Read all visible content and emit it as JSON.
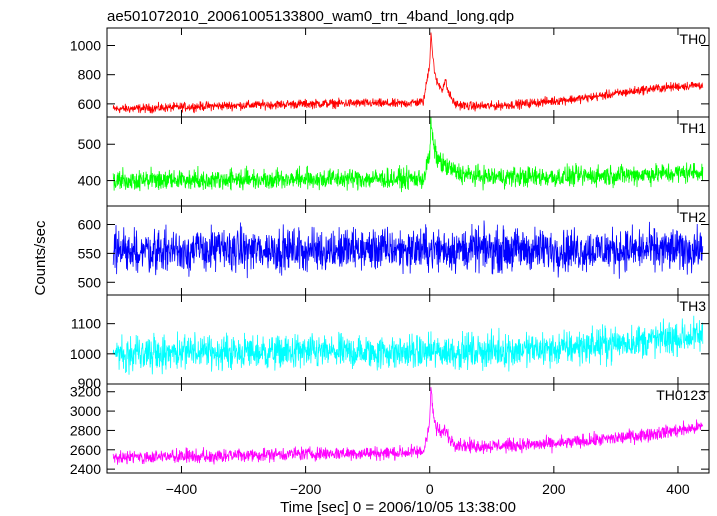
{
  "chart_data": {
    "type": "line",
    "title": "ae501072010_20061005133800_wam0_trn_4band_long.qdp",
    "xlabel": "Time [sec] 0 = 2006/10/05 13:38:00",
    "ylabel": "Counts/sec",
    "xlim": [
      -520,
      450
    ],
    "xticks": [
      -400,
      -200,
      0,
      200,
      400
    ],
    "grid": false,
    "panels": [
      {
        "name": "TH0",
        "color": "#ff0000",
        "ylim": [
          510,
          1120
        ],
        "yticks": [
          600,
          800,
          1000
        ],
        "x": [
          -510,
          -450,
          -400,
          -350,
          -300,
          -250,
          -200,
          -150,
          -100,
          -50,
          -10,
          0,
          2,
          5,
          10,
          20,
          25,
          30,
          40,
          60,
          100,
          150,
          200,
          250,
          300,
          350,
          400,
          440
        ],
        "y": [
          565,
          570,
          578,
          585,
          590,
          595,
          600,
          603,
          605,
          600,
          615,
          880,
          1100,
          920,
          760,
          700,
          760,
          680,
          600,
          585,
          585,
          600,
          620,
          640,
          670,
          700,
          720,
          730
        ],
        "noise": 22
      },
      {
        "name": "TH1",
        "color": "#00ff00",
        "ylim": [
          330,
          575
        ],
        "yticks": [
          400,
          500
        ],
        "x": [
          -510,
          -400,
          -300,
          -200,
          -100,
          -10,
          0,
          2,
          5,
          10,
          20,
          40,
          60,
          100,
          200,
          300,
          400,
          440
        ],
        "y": [
          400,
          402,
          404,
          405,
          405,
          405,
          470,
          560,
          510,
          470,
          445,
          425,
          415,
          410,
          410,
          415,
          420,
          425
        ],
        "noise": 20
      },
      {
        "name": "TH2",
        "color": "#0000ff",
        "ylim": [
          478,
          632
        ],
        "yticks": [
          500,
          550,
          600
        ],
        "x": [
          -510,
          -300,
          0,
          200,
          440
        ],
        "y": [
          555,
          556,
          557,
          556,
          556
        ],
        "noise": 26
      },
      {
        "name": "TH3",
        "color": "#00ffff",
        "ylim": [
          900,
          1195
        ],
        "yticks": [
          900,
          1000,
          1100
        ],
        "x": [
          -510,
          -400,
          -200,
          0,
          200,
          300,
          440
        ],
        "y": [
          1005,
          1005,
          1005,
          1005,
          1015,
          1035,
          1060
        ],
        "noise": 40
      },
      {
        "name": "TH0123",
        "color": "#ff00ff",
        "ylim": [
          2360,
          3280
        ],
        "yticks": [
          2400,
          2600,
          2800,
          3000,
          3200
        ],
        "x": [
          -510,
          -400,
          -300,
          -200,
          -100,
          -50,
          -10,
          0,
          2,
          5,
          10,
          20,
          25,
          30,
          40,
          60,
          100,
          200,
          300,
          400,
          440
        ],
        "y": [
          2520,
          2530,
          2545,
          2560,
          2565,
          2570,
          2580,
          2900,
          3250,
          3000,
          2830,
          2760,
          2820,
          2730,
          2670,
          2640,
          2640,
          2660,
          2720,
          2800,
          2840
        ],
        "noise": 50
      }
    ]
  }
}
